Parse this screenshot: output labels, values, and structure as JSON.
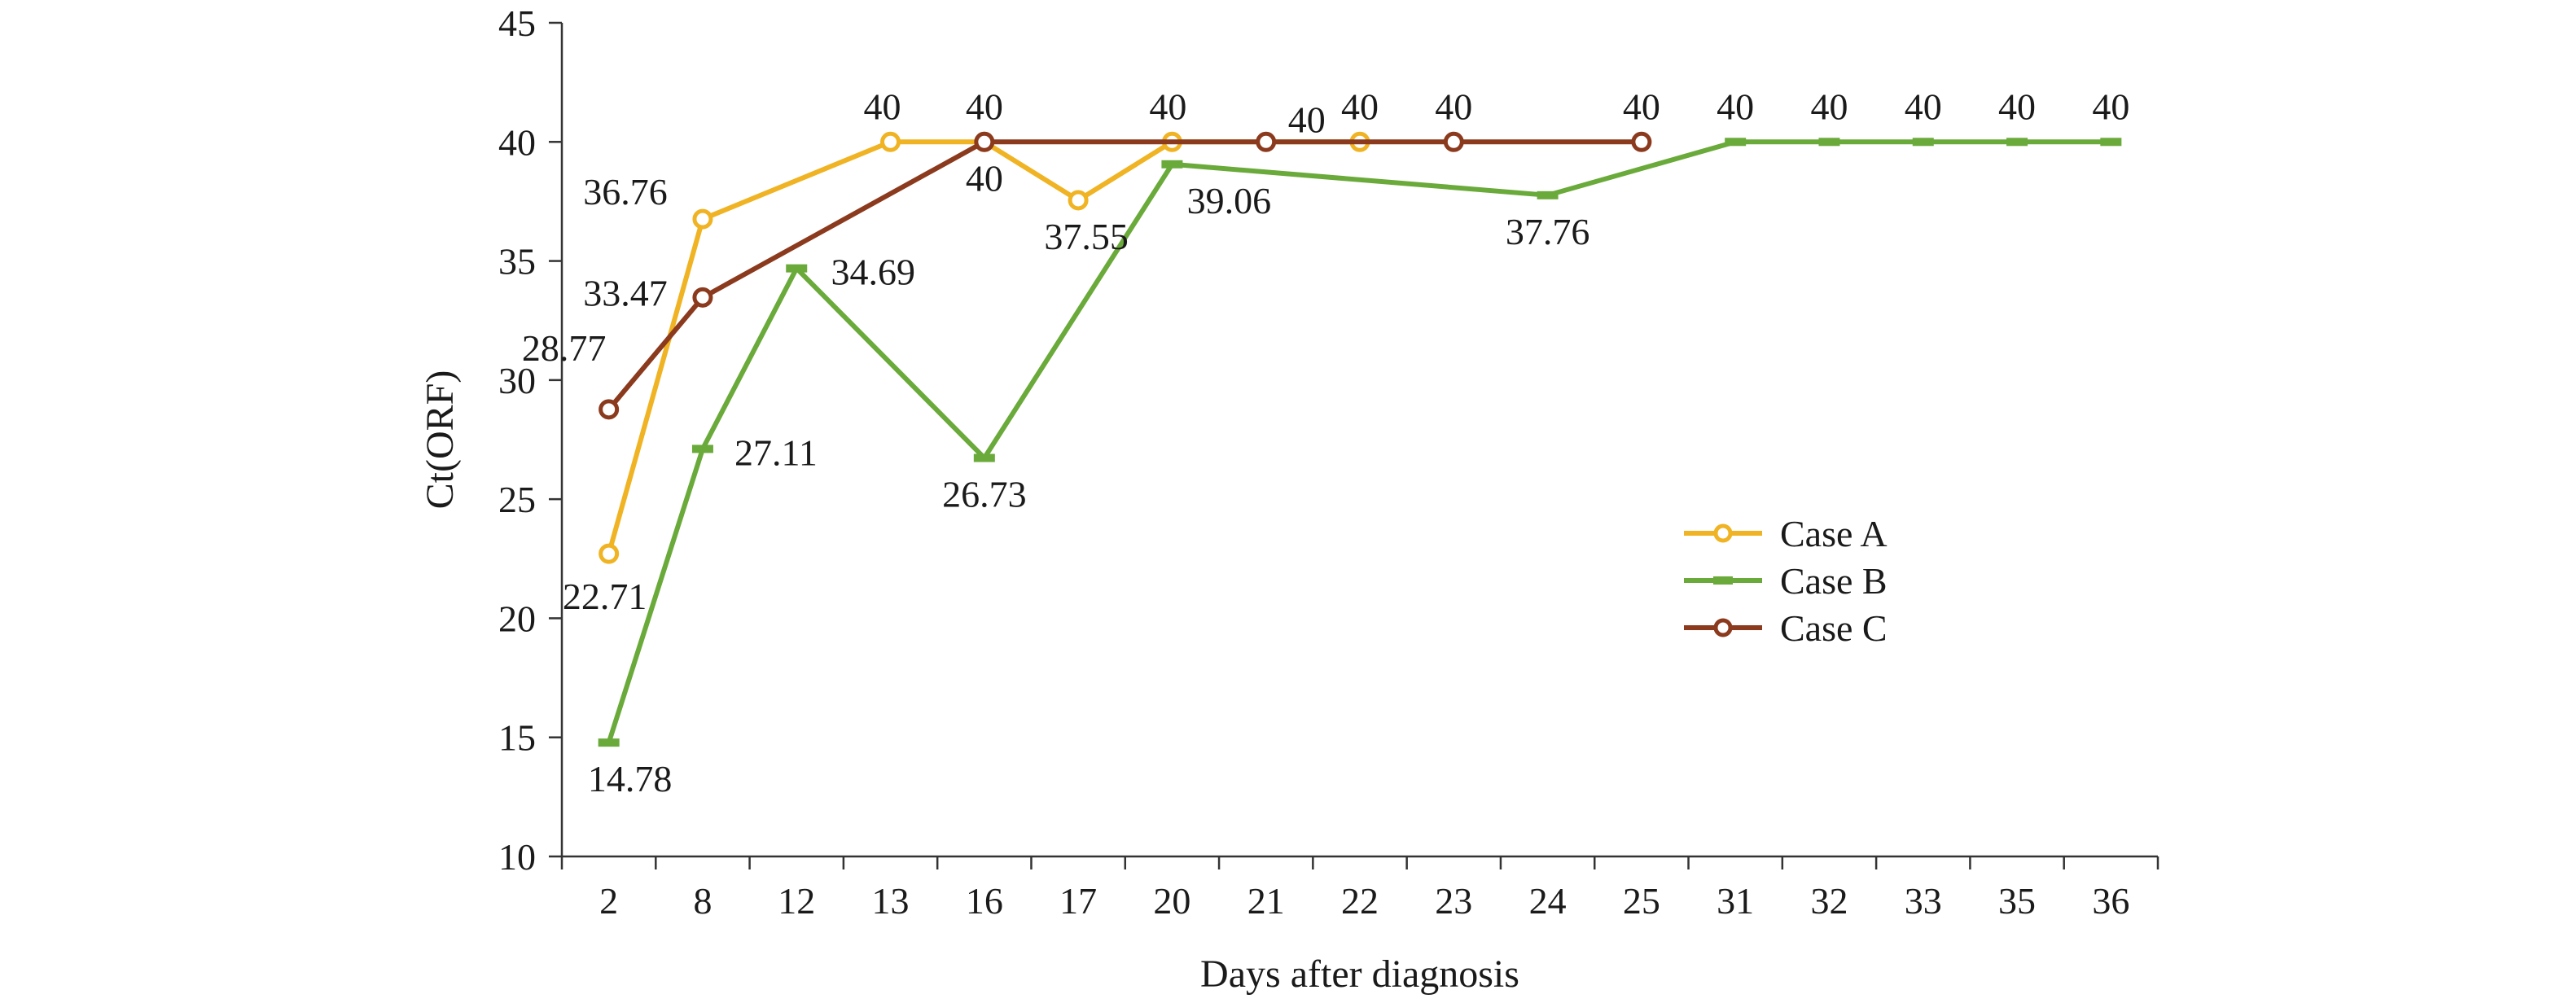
{
  "chart_data": {
    "type": "line",
    "title": "",
    "xlabel": "Days after diagnosis",
    "ylabel": "Ct(ORF)",
    "categories": [
      "2",
      "8",
      "12",
      "13",
      "16",
      "17",
      "20",
      "21",
      "22",
      "23",
      "24",
      "25",
      "31",
      "32",
      "33",
      "35",
      "36"
    ],
    "ylim": [
      10,
      45
    ],
    "yticks": [
      10,
      15,
      20,
      25,
      30,
      35,
      40,
      45
    ],
    "grid": false,
    "legend_position": "right",
    "series": [
      {
        "name": "Case A",
        "color": "#F0B323",
        "marker": "circle",
        "points": [
          {
            "x": "2",
            "y": 22.71,
            "label": "22.71"
          },
          {
            "x": "8",
            "y": 36.76,
            "label": "36.76"
          },
          {
            "x": "13",
            "y": 40,
            "label": "40"
          },
          {
            "x": "16",
            "y": 40,
            "label": "40"
          },
          {
            "x": "17",
            "y": 37.55,
            "label": "37.55"
          },
          {
            "x": "20",
            "y": 40,
            "label": "40"
          },
          {
            "x": "22",
            "y": 40,
            "label": "40"
          }
        ]
      },
      {
        "name": "Case B",
        "color": "#6AAA3A",
        "marker": "dash",
        "points": [
          {
            "x": "2",
            "y": 14.78,
            "label": "14.78"
          },
          {
            "x": "8",
            "y": 27.11,
            "label": "27.11"
          },
          {
            "x": "12",
            "y": 34.69,
            "label": "34.69"
          },
          {
            "x": "16",
            "y": 26.73,
            "label": "26.73"
          },
          {
            "x": "20",
            "y": 39.06,
            "label": "39.06"
          },
          {
            "x": "24",
            "y": 37.76,
            "label": "37.76"
          },
          {
            "x": "31",
            "y": 40,
            "label": "40"
          },
          {
            "x": "32",
            "y": 40,
            "label": "40"
          },
          {
            "x": "33",
            "y": 40,
            "label": "40"
          },
          {
            "x": "35",
            "y": 40,
            "label": "40"
          },
          {
            "x": "36",
            "y": 40,
            "label": "40"
          }
        ]
      },
      {
        "name": "Case C",
        "color": "#8B3A1E",
        "marker": "circle",
        "points": [
          {
            "x": "2",
            "y": 28.77,
            "label": "28.77"
          },
          {
            "x": "8",
            "y": 33.47,
            "label": "33.47"
          },
          {
            "x": "16",
            "y": 40,
            "label": "40"
          },
          {
            "x": "21",
            "y": 40,
            "label": "40"
          },
          {
            "x": "23",
            "y": 40,
            "label": "40"
          },
          {
            "x": "25",
            "y": 40,
            "label": "40"
          }
        ]
      }
    ]
  }
}
